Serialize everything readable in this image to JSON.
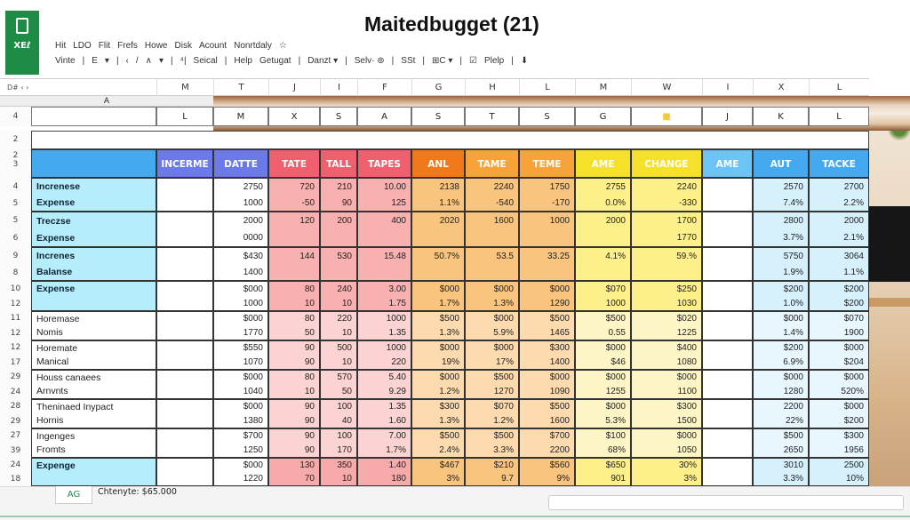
{
  "app": {
    "logo_text": "XEℓ",
    "title": "Maitedbugget (21)"
  },
  "menu_row1": [
    "Hit",
    "LDO",
    "Flit",
    "Frefs",
    "Howe",
    "Disk",
    "Acount",
    "Nonrtdaly",
    "☆"
  ],
  "menu_row2": [
    "Vinte",
    "|",
    "E",
    "▾",
    "|",
    "‹",
    "/",
    "∧",
    "▾",
    "|",
    "⁴|",
    "Seical",
    "|",
    "Help",
    "Getugat",
    "|",
    "Danzt ▾",
    "|",
    "Selv· ⊚",
    "|",
    "SSt",
    "|",
    "⊞C ▾",
    "|",
    "☑",
    "Plelp",
    "|",
    "⬇"
  ],
  "name_box": "D#   ‹ ›",
  "column_letters": [
    "M",
    "T",
    "J",
    "I",
    "F",
    "G",
    "H",
    "L",
    "M",
    "W",
    "I",
    "X",
    "L"
  ],
  "row_a_label": "A",
  "row4": {
    "number": "4",
    "cells": [
      "L",
      "M",
      "X",
      "S",
      "A",
      "S",
      "T",
      "S",
      "G",
      "■",
      "J",
      "K",
      "L"
    ]
  },
  "row2_number": "2",
  "header_row": {
    "numbers": "2\n3",
    "labels": [
      "",
      "INCERME",
      "DATTE",
      "TATE",
      "TALL",
      "TAPES",
      "ANL",
      "TAME",
      "TEME",
      "AME",
      "CHANGE",
      "AME",
      "AUT",
      "TACKE"
    ]
  },
  "colors": {
    "label_blue": "#45a9f0",
    "purple": "#6b7ae8",
    "red": "#ef5f6e",
    "orange_dark": "#f07a1a",
    "orange": "#f7a33a",
    "yellow": "#f5e02a",
    "light_blue": "#6cc3f5",
    "blue": "#45a9ef",
    "accent_green": "#1e8c45"
  },
  "groups": [
    {
      "rows": [
        "4",
        "5"
      ],
      "labels": [
        "Increnese",
        "Expense"
      ],
      "cells": [
        [
          "",
          ""
        ],
        [
          "2750",
          "1000"
        ],
        [
          "720",
          "-50"
        ],
        [
          "210",
          "90"
        ],
        [
          "10.00",
          "125"
        ],
        [
          "2138",
          "1.1%"
        ],
        [
          "2240",
          "-540"
        ],
        [
          "1750",
          "-170"
        ],
        [
          "2755",
          "0.0%"
        ],
        [
          "2240",
          "-330"
        ],
        [
          "",
          ""
        ],
        [
          "2570",
          "7.4%"
        ],
        [
          "2700",
          "2.2%"
        ]
      ]
    },
    {
      "rows": [
        "5",
        "6"
      ],
      "labels": [
        "Treczse",
        "Expense"
      ],
      "cells": [
        [
          "",
          ""
        ],
        [
          "2000",
          "0000"
        ],
        [
          "120",
          ""
        ],
        [
          "200",
          ""
        ],
        [
          "400",
          ""
        ],
        [
          "2020",
          ""
        ],
        [
          "1600",
          ""
        ],
        [
          "1000",
          ""
        ],
        [
          "2000",
          ""
        ],
        [
          "1700",
          "1770"
        ],
        [
          "",
          ""
        ],
        [
          "2800",
          "3.7%"
        ],
        [
          "2000",
          "2.1%"
        ]
      ]
    },
    {
      "rows": [
        "9",
        "8"
      ],
      "labels": [
        "Increnes",
        "Balanse"
      ],
      "cells": [
        [
          "",
          ""
        ],
        [
          "$430",
          "1400"
        ],
        [
          "144",
          ""
        ],
        [
          "530",
          ""
        ],
        [
          "15.48",
          ""
        ],
        [
          "50.7%",
          ""
        ],
        [
          "53.5",
          ""
        ],
        [
          "33.25",
          ""
        ],
        [
          "4.1%",
          ""
        ],
        [
          "59.%",
          ""
        ],
        [
          "",
          ""
        ],
        [
          "5750",
          "1.9%"
        ],
        [
          "3064",
          "1.1%"
        ]
      ]
    },
    {
      "rows": [
        "10",
        "12"
      ],
      "labels": [
        "Expense",
        ""
      ],
      "cells": [
        [
          "",
          ""
        ],
        [
          "$000",
          "1000"
        ],
        [
          "80",
          "10"
        ],
        [
          "240",
          "10"
        ],
        [
          "3.00",
          "1.75"
        ],
        [
          "$000",
          "1.7%"
        ],
        [
          "$000",
          "1.3%"
        ],
        [
          "$000",
          "1290"
        ],
        [
          "$070",
          "1000"
        ],
        [
          "$250",
          "1030"
        ],
        [
          "",
          ""
        ],
        [
          "$200",
          "1.0%"
        ],
        [
          "$200",
          "$200"
        ]
      ]
    },
    {
      "rows": [
        "11",
        "12"
      ],
      "labels": [
        "Horemase",
        "Nomis"
      ],
      "cells": [
        [
          "",
          ""
        ],
        [
          "$000",
          "1770"
        ],
        [
          "80",
          "50"
        ],
        [
          "220",
          "10"
        ],
        [
          "1000",
          "1.35"
        ],
        [
          "$500",
          "1.3%"
        ],
        [
          "$000",
          "5.9%"
        ],
        [
          "$500",
          "1465"
        ],
        [
          "$500",
          "0.55"
        ],
        [
          "$020",
          "1225"
        ],
        [
          "",
          ""
        ],
        [
          "$000",
          "1.4%"
        ],
        [
          "$070",
          "1900"
        ]
      ]
    },
    {
      "rows": [
        "12",
        "17"
      ],
      "labels": [
        "Horemate",
        "Manical"
      ],
      "cells": [
        [
          "",
          ""
        ],
        [
          "$550",
          "1070"
        ],
        [
          "90",
          "90"
        ],
        [
          "500",
          "10"
        ],
        [
          "1000",
          "220"
        ],
        [
          "$000",
          "19%"
        ],
        [
          "$000",
          "17%"
        ],
        [
          "$300",
          "1400"
        ],
        [
          "$000",
          "$46"
        ],
        [
          "$400",
          "1080"
        ],
        [
          "",
          ""
        ],
        [
          "$200",
          "6.9%"
        ],
        [
          "$000",
          "$204"
        ]
      ]
    },
    {
      "rows": [
        "29",
        "24"
      ],
      "labels": [
        "Houss canaees",
        "Arnvnts"
      ],
      "cells": [
        [
          "",
          ""
        ],
        [
          "$000",
          "1040"
        ],
        [
          "80",
          "10"
        ],
        [
          "570",
          "50"
        ],
        [
          "5.40",
          "9.29"
        ],
        [
          "$000",
          "1.2%"
        ],
        [
          "$500",
          "1270"
        ],
        [
          "$000",
          "1090"
        ],
        [
          "$000",
          "1255"
        ],
        [
          "$000",
          "1100"
        ],
        [
          "",
          ""
        ],
        [
          "$000",
          "1280"
        ],
        [
          "$000",
          "520%"
        ]
      ]
    },
    {
      "rows": [
        "28",
        "29"
      ],
      "labels": [
        "Theninaed Inypact",
        "Hornis"
      ],
      "cells": [
        [
          "",
          ""
        ],
        [
          "$000",
          "1380"
        ],
        [
          "90",
          "90"
        ],
        [
          "100",
          "40"
        ],
        [
          "1.35",
          "1.60"
        ],
        [
          "$300",
          "1.3%"
        ],
        [
          "$070",
          "1.2%"
        ],
        [
          "$500",
          "1600"
        ],
        [
          "$000",
          "5.3%"
        ],
        [
          "$300",
          "1500"
        ],
        [
          "",
          ""
        ],
        [
          "2200",
          "22%"
        ],
        [
          "$000",
          "$200"
        ]
      ]
    },
    {
      "rows": [
        "27",
        "39"
      ],
      "labels": [
        "Ingenges",
        "Fromts"
      ],
      "cells": [
        [
          "",
          ""
        ],
        [
          "$700",
          "1250"
        ],
        [
          "90",
          "90"
        ],
        [
          "100",
          "170"
        ],
        [
          "7.00",
          "1.7%"
        ],
        [
          "$500",
          "2.4%"
        ],
        [
          "$500",
          "3.3%"
        ],
        [
          "$700",
          "2200"
        ],
        [
          "$100",
          "68%"
        ],
        [
          "$000",
          "1050"
        ],
        [
          "",
          ""
        ],
        [
          "$500",
          "2650"
        ],
        [
          "$300",
          "1956"
        ]
      ]
    },
    {
      "rows": [
        "24",
        "18"
      ],
      "labels": [
        "Expenge",
        ""
      ],
      "cells": [
        [
          "",
          ""
        ],
        [
          "$000",
          "1220"
        ],
        [
          "130",
          "70"
        ],
        [
          "350",
          "10"
        ],
        [
          "1.40",
          "180"
        ],
        [
          "$467",
          "3%"
        ],
        [
          "$210",
          "9.7"
        ],
        [
          "$560",
          "9%"
        ],
        [
          "$650",
          "901"
        ],
        [
          "30%",
          "3%"
        ],
        [
          "",
          ""
        ],
        [
          "3010",
          "3.3%"
        ],
        [
          "2500",
          "10%"
        ]
      ]
    }
  ],
  "sheet_tabs": {
    "active": "AG",
    "info": "Chtenyte: $65.000"
  }
}
